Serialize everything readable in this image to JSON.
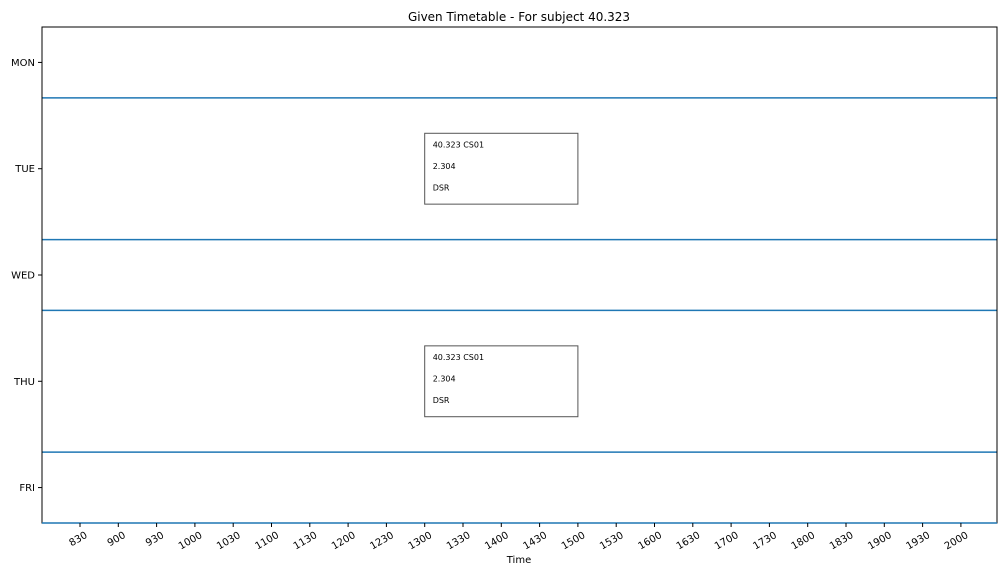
{
  "chart_data": {
    "type": "timetable",
    "title": "Given Timetable - For subject 40.323",
    "xlabel": "Time",
    "ylabel": "",
    "x_ticks": [
      "830",
      "900",
      "930",
      "1000",
      "1030",
      "1100",
      "1130",
      "1200",
      "1230",
      "1300",
      "1330",
      "1400",
      "1430",
      "1500",
      "1530",
      "1600",
      "1630",
      "1700",
      "1730",
      "1800",
      "1830",
      "1900",
      "1930",
      "2000"
    ],
    "days": [
      {
        "label": "MON",
        "span": 1
      },
      {
        "label": "TUE",
        "span": 2
      },
      {
        "label": "WED",
        "span": 1
      },
      {
        "label": "THU",
        "span": 2
      },
      {
        "label": "FRI",
        "span": 1
      }
    ],
    "events": [
      {
        "day": "TUE",
        "start": "1300",
        "end": "1500",
        "lines": [
          "40.323 CS01",
          "2.304",
          "DSR"
        ]
      },
      {
        "day": "THU",
        "start": "1300",
        "end": "1500",
        "lines": [
          "40.323 CS01",
          "2.304",
          "DSR"
        ]
      }
    ],
    "colors": {
      "separator": "#1f77b4",
      "axis": "#000000",
      "event_border": "#555555"
    }
  }
}
